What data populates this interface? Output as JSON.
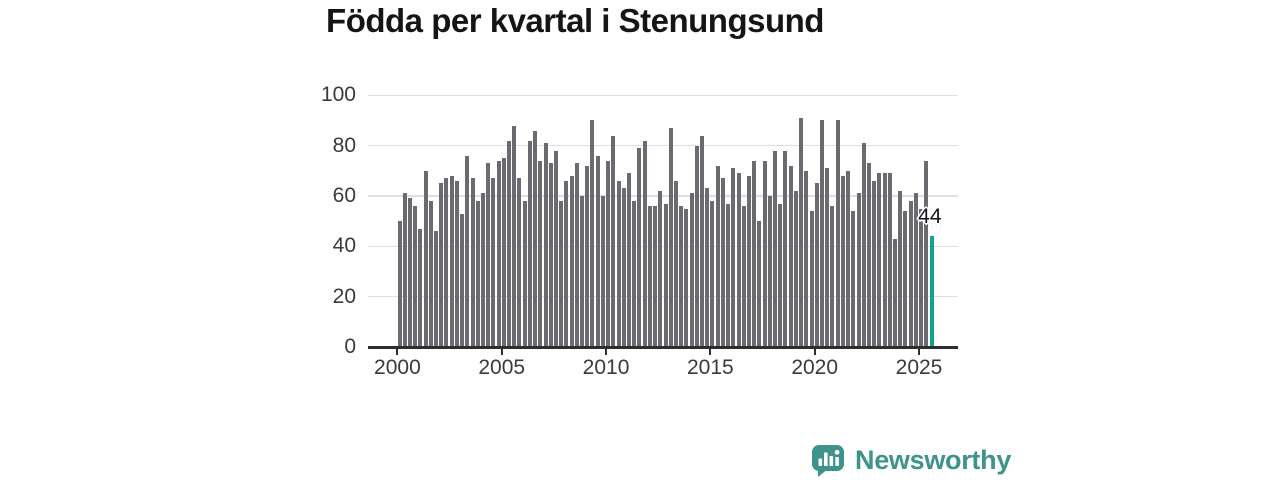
{
  "title": "Födda per kvartal i Stenungsund",
  "brand": {
    "name": "Newsworthy"
  },
  "colors": {
    "bar": "#6a6a71",
    "highlight": "#13a095",
    "brand_teal": "#3e938c",
    "title_text": "#151515",
    "axis_text": "#3a3a3a",
    "gridline": "#dedede",
    "axis_line": "#2e2e2e"
  },
  "chart_data": {
    "type": "bar",
    "title": "Födda per kvartal i Stenungsund",
    "x_unit": "quarter",
    "x_start": "2000 Q1",
    "x_end": "2025 Q3",
    "x_tick_labels": [
      "2000",
      "2005",
      "2010",
      "2015",
      "2020",
      "2025"
    ],
    "y_tick_labels": [
      "0",
      "20",
      "40",
      "60",
      "80",
      "100"
    ],
    "ylim": [
      0,
      100
    ],
    "grid": "horizontal",
    "legend": "none",
    "values": [
      50,
      61,
      59,
      56,
      47,
      70,
      58,
      46,
      65,
      67,
      68,
      66,
      53,
      76,
      67,
      58,
      61,
      73,
      67,
      74,
      75,
      82,
      88,
      67,
      58,
      82,
      86,
      74,
      81,
      73,
      78,
      58,
      66,
      68,
      73,
      60,
      72,
      90,
      76,
      60,
      74,
      84,
      66,
      63,
      69,
      58,
      79,
      82,
      56,
      56,
      62,
      57,
      87,
      66,
      56,
      55,
      61,
      80,
      84,
      63,
      58,
      72,
      67,
      57,
      71,
      69,
      56,
      68,
      74,
      50,
      74,
      60,
      78,
      57,
      78,
      72,
      62,
      91,
      70,
      54,
      65,
      90,
      71,
      56,
      90,
      68,
      70,
      54,
      61,
      81,
      73,
      66,
      69,
      69,
      69,
      43,
      62,
      54,
      58,
      61,
      55,
      74,
      44
    ],
    "highlight": {
      "index": 102,
      "quarter": "2025 Q3",
      "value": 44,
      "label": "44"
    }
  }
}
